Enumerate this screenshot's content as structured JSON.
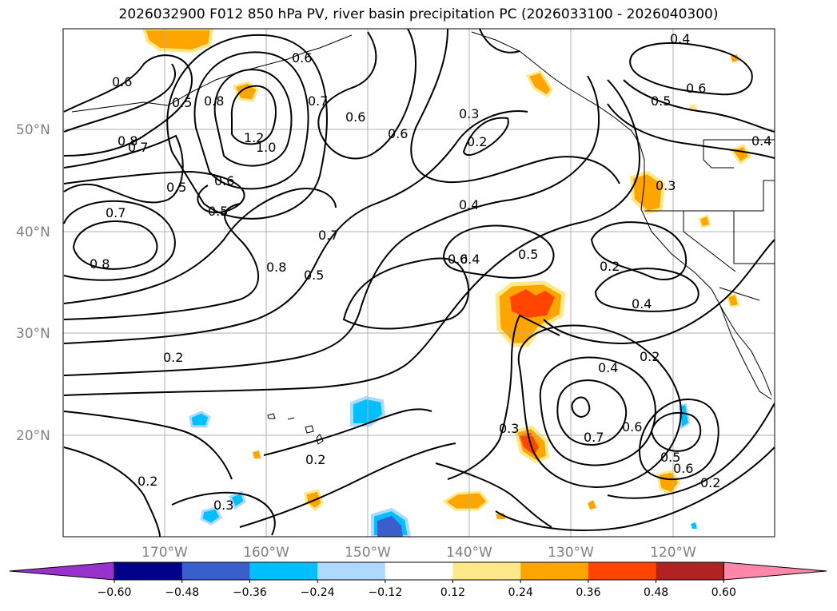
{
  "title": "2026032900 F012 850 hPa PV, river basin precipitation PC (2026033100 - 2026040300)",
  "lat_labels": [
    "50°N",
    "40°N",
    "30°N",
    "20°N"
  ],
  "lon_labels": [
    "170°W",
    "160°W",
    "150°W",
    "140°W",
    "130°W",
    "120°W"
  ],
  "colorbar": {
    "ticks": [
      "−0.60",
      "−0.48",
      "−0.36",
      "−0.24",
      "−0.12",
      "0.12",
      "0.24",
      "0.36",
      "0.48",
      "0.60"
    ],
    "colors": [
      "#9932cc",
      "#00008b",
      "#3a5fcd",
      "#00bfff",
      "#add8ff",
      "#ffffff",
      "#ffe88a",
      "#ffa500",
      "#ff4500",
      "#b22222",
      "#ff88aa"
    ]
  },
  "contour_labels": [
    "0.6",
    "0.5",
    "0.8",
    "0.7",
    "0.8",
    "1.2",
    "1.0",
    "0.6",
    "0.6",
    "0.3",
    "0.2",
    "0.4",
    "0.6",
    "0.5",
    "0.6",
    "0.4",
    "0.5",
    "0.7",
    "0.6",
    "0.5",
    "0.7",
    "0.8",
    "0.5",
    "0.4",
    "0.6",
    "0.5",
    "0.3",
    "0.2",
    "0.8",
    "0.4",
    "0.2",
    "0.4",
    "0.7",
    "0.6",
    "0.3",
    "0.2",
    "0.2",
    "0.5",
    "0.6",
    "0.2",
    "0.2",
    "0.3",
    "0.7",
    "0.4"
  ]
}
